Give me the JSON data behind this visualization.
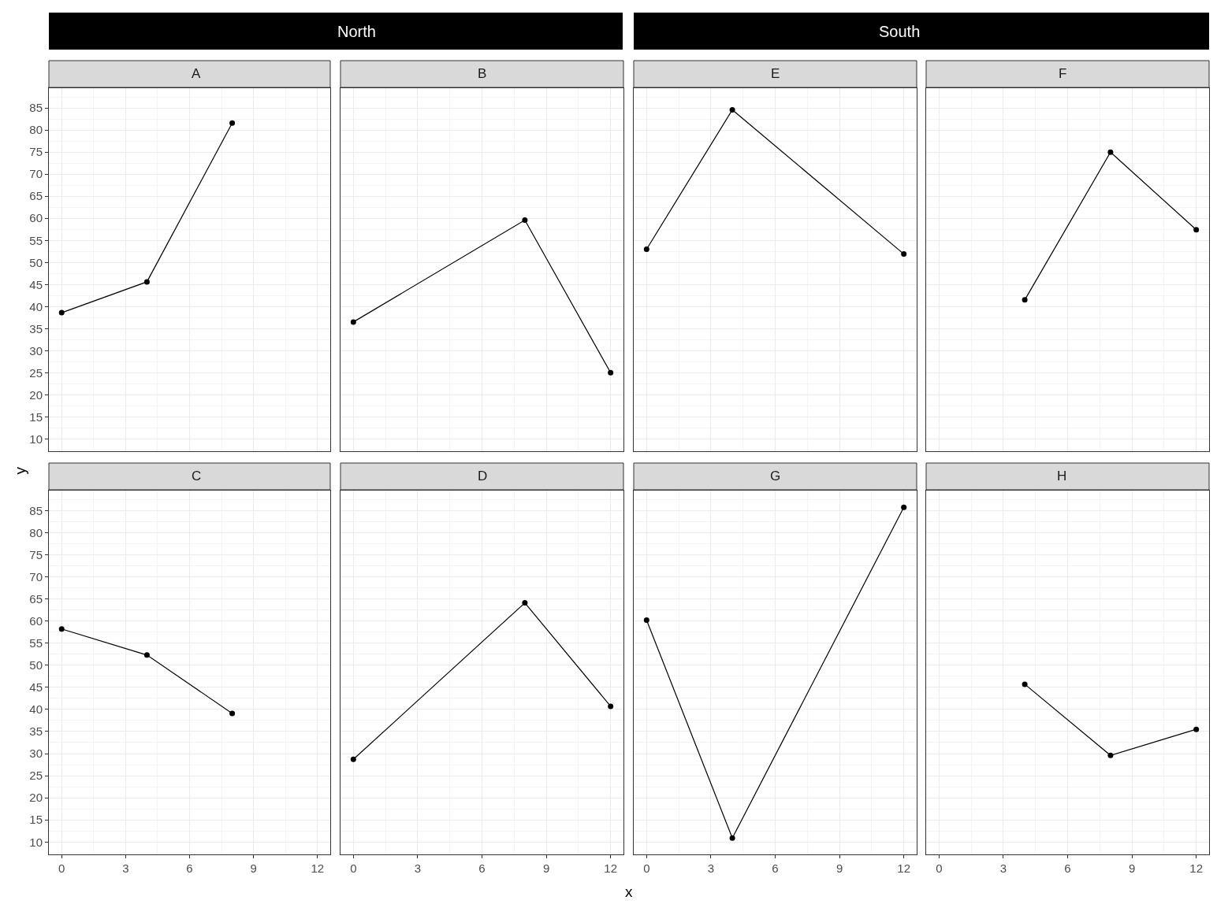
{
  "chart_data": [
    {
      "type": "other",
      "title": "North"
    },
    {
      "type": "other",
      "title": "South"
    },
    {
      "type": "line",
      "title": "A",
      "x": [
        0,
        4,
        8
      ],
      "values": [
        38.6,
        45.6,
        81.6
      ],
      "color": "#000000",
      "marker": "circle",
      "line_style": "solid",
      "xlim": [
        -0.6,
        12.6
      ],
      "ylim": [
        7.2,
        89.5
      ],
      "xticks": [
        0,
        3,
        6,
        9,
        12
      ],
      "yticks": [
        10,
        15,
        20,
        25,
        30,
        35,
        40,
        45,
        50,
        55,
        60,
        65,
        70,
        75,
        80,
        85
      ],
      "grid": true,
      "tick_labels": "y"
    },
    {
      "type": "line",
      "title": "B",
      "x": [
        0,
        8,
        12
      ],
      "values": [
        36.5,
        59.6,
        25.0
      ],
      "color": "#000000",
      "marker": "circle",
      "line_style": "solid",
      "xlim": [
        -0.6,
        12.6
      ],
      "ylim": [
        7.2,
        89.5
      ],
      "xticks": [
        0,
        3,
        6,
        9,
        12
      ],
      "yticks": [
        10,
        15,
        20,
        25,
        30,
        35,
        40,
        45,
        50,
        55,
        60,
        65,
        70,
        75,
        80,
        85
      ],
      "grid": true,
      "tick_labels": false
    },
    {
      "type": "line",
      "title": "E",
      "x": [
        0,
        4,
        12
      ],
      "values": [
        53.0,
        84.6,
        51.9
      ],
      "color": "#000000",
      "marker": "circle",
      "line_style": "solid",
      "xlim": [
        -0.6,
        12.6
      ],
      "ylim": [
        7.2,
        89.5
      ],
      "xticks": [
        0,
        3,
        6,
        9,
        12
      ],
      "yticks": [
        10,
        15,
        20,
        25,
        30,
        35,
        40,
        45,
        50,
        55,
        60,
        65,
        70,
        75,
        80,
        85
      ],
      "grid": true,
      "tick_labels": false
    },
    {
      "type": "line",
      "title": "F",
      "x": [
        4,
        8,
        12
      ],
      "values": [
        41.5,
        75.0,
        57.4
      ],
      "color": "#000000",
      "marker": "circle",
      "line_style": "solid",
      "xlim": [
        -0.6,
        12.6
      ],
      "ylim": [
        7.2,
        89.5
      ],
      "xticks": [
        0,
        3,
        6,
        9,
        12
      ],
      "yticks": [
        10,
        15,
        20,
        25,
        30,
        35,
        40,
        45,
        50,
        55,
        60,
        65,
        70,
        75,
        80,
        85
      ],
      "grid": true,
      "tick_labels": false
    },
    {
      "type": "line",
      "title": "C",
      "x": [
        0,
        4,
        8
      ],
      "values": [
        58.2,
        52.3,
        39.1
      ],
      "color": "#000000",
      "marker": "circle",
      "line_style": "solid",
      "xlim": [
        -0.6,
        12.6
      ],
      "ylim": [
        7.2,
        89.5
      ],
      "xticks": [
        0,
        3,
        6,
        9,
        12
      ],
      "yticks": [
        10,
        15,
        20,
        25,
        30,
        35,
        40,
        45,
        50,
        55,
        60,
        65,
        70,
        75,
        80,
        85
      ],
      "grid": true
    },
    {
      "type": "line",
      "title": "D",
      "x": [
        0,
        8,
        12
      ],
      "values": [
        28.7,
        64.1,
        40.7
      ],
      "color": "#000000",
      "marker": "circle",
      "line_style": "solid",
      "xlim": [
        -0.6,
        12.6
      ],
      "ylim": [
        7.2,
        89.5
      ],
      "xticks": [
        0,
        3,
        6,
        9,
        12
      ],
      "yticks": [
        10,
        15,
        20,
        25,
        30,
        35,
        40,
        45,
        50,
        55,
        60,
        65,
        70,
        75,
        80,
        85
      ],
      "grid": true,
      "tick_labels": "x"
    },
    {
      "type": "line",
      "title": "G",
      "x": [
        0,
        4,
        12
      ],
      "values": [
        60.2,
        10.9,
        85.7
      ],
      "color": "#000000",
      "marker": "circle",
      "line_style": "solid",
      "xlim": [
        -0.6,
        12.6
      ],
      "ylim": [
        7.2,
        89.5
      ],
      "xticks": [
        0,
        3,
        6,
        9,
        12
      ],
      "yticks": [
        10,
        15,
        20,
        25,
        30,
        35,
        40,
        45,
        50,
        55,
        60,
        65,
        70,
        75,
        80,
        85
      ],
      "grid": true,
      "tick_labels": "x"
    },
    {
      "type": "other",
      "xlabel": "x",
      "ylabel": "y"
    },
    {
      "type": "line",
      "title": "H",
      "x": [
        4,
        8,
        12
      ],
      "values": [
        45.7,
        29.6,
        35.5
      ],
      "color": "#000000",
      "marker": "circle",
      "line_style": "solid",
      "xlim": [
        -0.6,
        12.6
      ],
      "ylim": [
        7.2,
        89.5
      ],
      "xticks": [
        0,
        3,
        6,
        9,
        12
      ],
      "yticks": [
        10,
        15,
        20,
        25,
        30,
        35,
        40,
        45,
        50,
        55,
        60,
        65,
        70,
        75,
        80,
        85
      ],
      "grid": true,
      "tick_labels": "x"
    }
  ]
}
